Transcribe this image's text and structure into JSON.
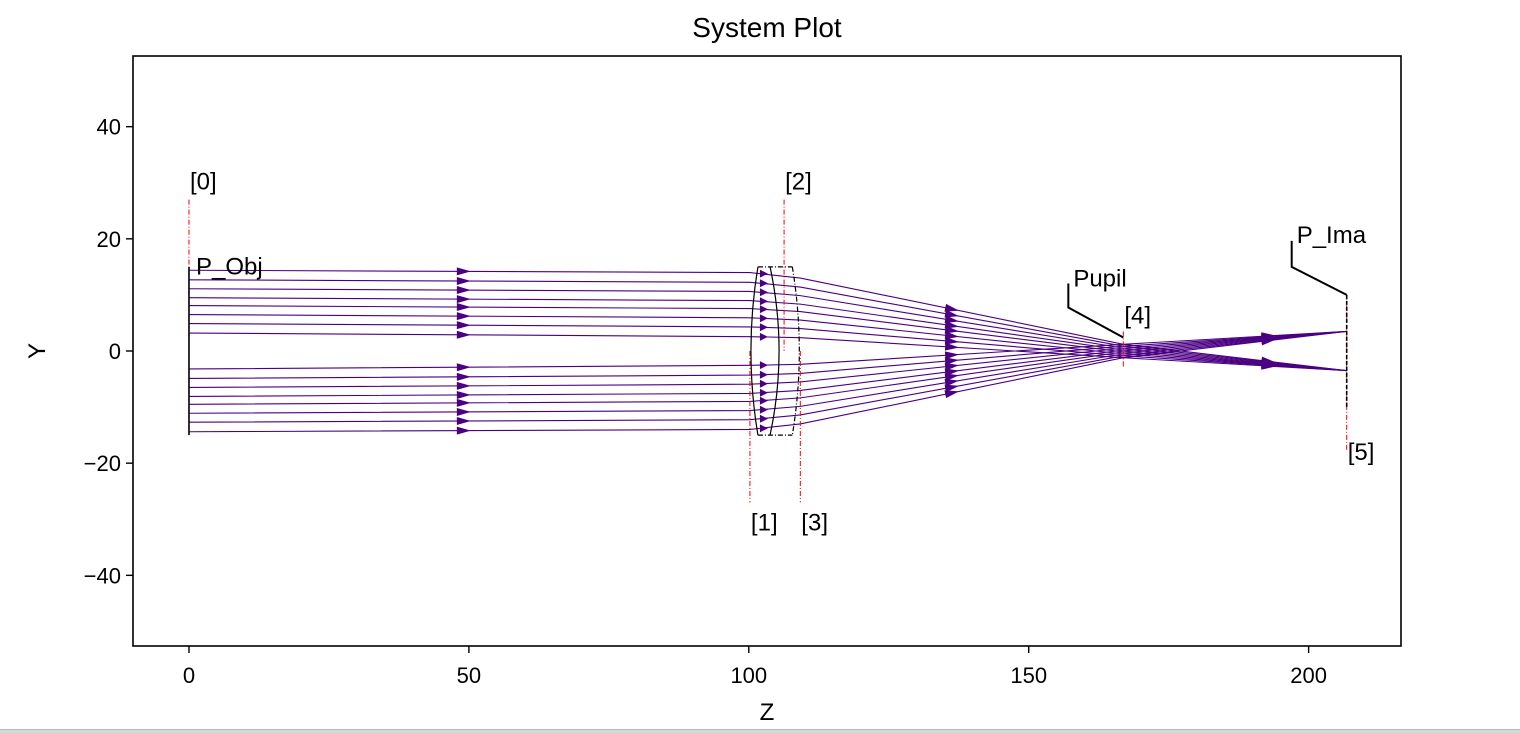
{
  "chart_data": {
    "type": "line",
    "title": "System Plot",
    "xlabel": "Z",
    "ylabel": "Y",
    "xlim": [
      -10,
      216.5
    ],
    "ylim": [
      -52.6,
      52.6
    ],
    "xticks": [
      0,
      50,
      100,
      150,
      200
    ],
    "yticks": [
      -40,
      -20,
      0,
      20,
      40
    ],
    "xtick_labels": [
      "0",
      "50",
      "100",
      "150",
      "200"
    ],
    "ytick_labels": [
      "−40",
      "−20",
      "0",
      "20",
      "40"
    ],
    "colors": {
      "ray": "#4b0082",
      "surface": "#ff0000",
      "lens": "#000000",
      "frame": "#000000"
    },
    "surfaces": [
      {
        "label": "[0]",
        "z": 0,
        "y_top": 27,
        "y_bottom": 0
      },
      {
        "label": "[1]",
        "z": 100.2,
        "y_top": 0,
        "y_bottom": -27
      },
      {
        "label": "[2]",
        "z": 106.3,
        "y_top": 27,
        "y_bottom": 0
      },
      {
        "label": "[3]",
        "z": 109.2,
        "y_top": 0,
        "y_bottom": -27
      },
      {
        "label": "[4]",
        "z": 166.9,
        "y_top": 3.5,
        "y_bottom": -3
      },
      {
        "label": "[5]",
        "z": 206.8,
        "y_top": 10,
        "y_bottom": -18
      }
    ],
    "object_plane": {
      "z": 0,
      "y_top": 15,
      "y_bottom": -15
    },
    "image_plane": {
      "z": 206.8,
      "y_top": 10,
      "y_bottom": -10
    },
    "lens": {
      "z_front": 100.2,
      "z_mid": 106.3,
      "z_back": 109.2,
      "semi_aperture": 15
    },
    "annotations": [
      {
        "text": "P_Obj",
        "x": 0,
        "y": 14
      },
      {
        "text": "Pupil",
        "x": 166.9,
        "y": 2.4
      },
      {
        "text": "P_Ima",
        "x": 206.8,
        "y": 10
      }
    ],
    "ray_fields": [
      {
        "object_y": 8.8,
        "image_y": 3.5
      },
      {
        "object_y": -8.8,
        "image_y": -3.5
      }
    ],
    "ray_offsets": [
      -5.6,
      -3.9,
      -2.3,
      -0.7,
      0.7,
      2.3,
      3.9,
      5.6
    ],
    "ray_z": [
      0,
      100.2,
      109.2,
      166.9,
      206.8
    ],
    "pupil_y_spread": 1.2
  }
}
